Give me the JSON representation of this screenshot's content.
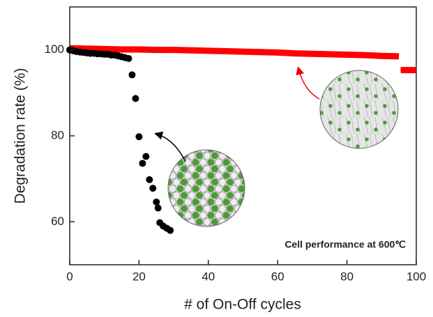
{
  "chart_data": {
    "type": "scatter",
    "xlabel": "# of On-Off cycles",
    "ylabel": "Degradation rate (%)",
    "annotation": "Cell performance at 600℃",
    "xlim": [
      0,
      100
    ],
    "xticks": [
      0,
      20,
      40,
      60,
      80,
      100
    ],
    "ylim": [
      50,
      110
    ],
    "yticks": [
      60,
      80,
      100
    ],
    "series": [
      {
        "color": "#ff0000",
        "marker": "thick-line",
        "x": [
          0,
          5,
          10,
          15,
          20,
          25,
          30,
          35,
          40,
          45,
          50,
          55,
          60,
          65,
          70,
          75,
          80,
          85,
          90,
          95,
          95.2,
          95.5,
          100
        ],
        "values": [
          100.4,
          100.3,
          100.2,
          100.1,
          100.1,
          100,
          100,
          99.9,
          99.8,
          99.7,
          99.6,
          99.5,
          99.4,
          99.2,
          99.1,
          99,
          98.9,
          98.8,
          98.6,
          98.5,
          null,
          95.3,
          95.3
        ]
      },
      {
        "color": "#000000",
        "marker": "circle",
        "x": [
          0,
          1,
          2,
          3,
          4,
          5,
          6,
          7,
          8,
          9,
          10,
          11,
          12,
          13,
          14,
          15,
          16,
          17,
          18,
          19,
          20,
          21,
          22,
          23,
          24,
          25,
          25.5,
          26,
          27,
          28,
          29
        ],
        "values": [
          100,
          99.8,
          99.6,
          99.5,
          99.4,
          99.3,
          99.2,
          99.2,
          99.1,
          99.1,
          99,
          99,
          98.8,
          98.8,
          98.6,
          98.4,
          98.2,
          98,
          94.2,
          88.7,
          79.8,
          73.6,
          75.2,
          69.8,
          67.8,
          64.6,
          63.2,
          59.8,
          59,
          58.5,
          58
        ]
      }
    ]
  }
}
